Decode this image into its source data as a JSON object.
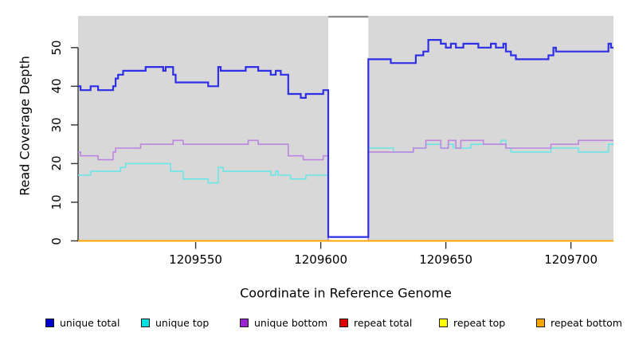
{
  "chart_data": {
    "type": "line",
    "subtype": "step-coverage",
    "title": "",
    "xlabel": "Coordinate in Reference Genome",
    "ylabel": "Read Coverage Depth",
    "xlim": [
      1209503,
      1209717
    ],
    "ylim": [
      0,
      58.2
    ],
    "xticks": [
      1209550,
      1209600,
      1209650,
      1209700
    ],
    "yticks": [
      0,
      10,
      20,
      30,
      40,
      50
    ],
    "grid": false,
    "panel_background": "#D8D8D8",
    "axis_color": "#333333",
    "gap_region": {
      "start": 1209603,
      "end": 1209619,
      "fill": "#FFFFFF",
      "top_border_color": "#8C8C8C"
    },
    "legend_position": "bottom",
    "series": [
      {
        "name": "unique total",
        "color": "#2E2EE6",
        "width": 2.2,
        "points": [
          [
            1209503,
            40
          ],
          [
            1209504,
            39
          ],
          [
            1209508,
            40
          ],
          [
            1209511,
            39
          ],
          [
            1209517,
            40
          ],
          [
            1209518,
            42
          ],
          [
            1209519,
            43
          ],
          [
            1209521,
            44
          ],
          [
            1209530,
            45
          ],
          [
            1209537,
            44
          ],
          [
            1209538,
            45
          ],
          [
            1209541,
            43
          ],
          [
            1209542,
            41
          ],
          [
            1209555,
            40
          ],
          [
            1209559,
            45
          ],
          [
            1209560,
            44
          ],
          [
            1209570,
            45
          ],
          [
            1209575,
            44
          ],
          [
            1209580,
            43
          ],
          [
            1209582,
            44
          ],
          [
            1209584,
            43
          ],
          [
            1209587,
            38
          ],
          [
            1209592,
            37
          ],
          [
            1209594,
            38
          ],
          [
            1209601,
            39
          ],
          [
            1209603,
            1
          ],
          [
            1209619,
            47
          ],
          [
            1209628,
            46
          ],
          [
            1209638,
            48
          ],
          [
            1209641,
            49
          ],
          [
            1209643,
            52
          ],
          [
            1209648,
            51
          ],
          [
            1209650,
            50
          ],
          [
            1209652,
            51
          ],
          [
            1209654,
            50
          ],
          [
            1209657,
            51
          ],
          [
            1209663,
            50
          ],
          [
            1209668,
            51
          ],
          [
            1209670,
            50
          ],
          [
            1209673,
            51
          ],
          [
            1209674,
            49
          ],
          [
            1209676,
            48
          ],
          [
            1209678,
            47
          ],
          [
            1209691,
            48
          ],
          [
            1209693,
            50
          ],
          [
            1209694,
            49
          ],
          [
            1209715,
            51
          ],
          [
            1209716,
            50
          ]
        ]
      },
      {
        "name": "unique top",
        "color": "#6AE6E6",
        "width": 1.6,
        "points": [
          [
            1209503,
            17
          ],
          [
            1209508,
            18
          ],
          [
            1209520,
            19
          ],
          [
            1209522,
            20
          ],
          [
            1209540,
            18
          ],
          [
            1209545,
            16
          ],
          [
            1209555,
            15
          ],
          [
            1209559,
            19
          ],
          [
            1209561,
            18
          ],
          [
            1209580,
            17
          ],
          [
            1209582,
            18
          ],
          [
            1209583,
            17
          ],
          [
            1209588,
            16
          ],
          [
            1209594,
            17
          ],
          [
            1209603,
            0
          ],
          [
            1209619,
            24
          ],
          [
            1209629,
            23
          ],
          [
            1209637,
            24
          ],
          [
            1209642,
            25
          ],
          [
            1209648,
            24
          ],
          [
            1209651,
            25
          ],
          [
            1209653,
            24
          ],
          [
            1209660,
            25
          ],
          [
            1209672,
            26
          ],
          [
            1209674,
            24
          ],
          [
            1209676,
            23
          ],
          [
            1209692,
            24
          ],
          [
            1209703,
            23
          ],
          [
            1209715,
            25
          ]
        ]
      },
      {
        "name": "unique bottom",
        "color": "#BD85E0",
        "width": 1.6,
        "points": [
          [
            1209503,
            23
          ],
          [
            1209504,
            22
          ],
          [
            1209511,
            21
          ],
          [
            1209517,
            23
          ],
          [
            1209518,
            24
          ],
          [
            1209528,
            25
          ],
          [
            1209541,
            26
          ],
          [
            1209545,
            25
          ],
          [
            1209571,
            26
          ],
          [
            1209575,
            25
          ],
          [
            1209587,
            22
          ],
          [
            1209593,
            21
          ],
          [
            1209601,
            22
          ],
          [
            1209603,
            0
          ],
          [
            1209619,
            23
          ],
          [
            1209637,
            24
          ],
          [
            1209642,
            26
          ],
          [
            1209648,
            24
          ],
          [
            1209651,
            26
          ],
          [
            1209654,
            24
          ],
          [
            1209656,
            26
          ],
          [
            1209665,
            25
          ],
          [
            1209674,
            24
          ],
          [
            1209692,
            25
          ],
          [
            1209703,
            26
          ]
        ]
      },
      {
        "name": "repeat total",
        "color": "#DF0000",
        "width": 1.6,
        "points": [
          [
            1209503,
            0
          ]
        ]
      },
      {
        "name": "repeat top",
        "color": "#FFFF00",
        "width": 1.6,
        "points": [
          [
            1209503,
            0
          ]
        ]
      },
      {
        "name": "repeat bottom",
        "color": "#FFA500",
        "width": 2,
        "points": [
          [
            1209503,
            0
          ]
        ]
      }
    ]
  },
  "legend": {
    "items": [
      {
        "label": "unique total",
        "swatch": "#0000CC"
      },
      {
        "label": "unique top",
        "swatch": "#00E0E0"
      },
      {
        "label": "unique bottom",
        "swatch": "#9A22CF"
      },
      {
        "label": "repeat total",
        "swatch": "#DF0000"
      },
      {
        "label": "repeat top",
        "swatch": "#FFFF00"
      },
      {
        "label": "repeat bottom",
        "swatch": "#FFA500"
      }
    ]
  }
}
